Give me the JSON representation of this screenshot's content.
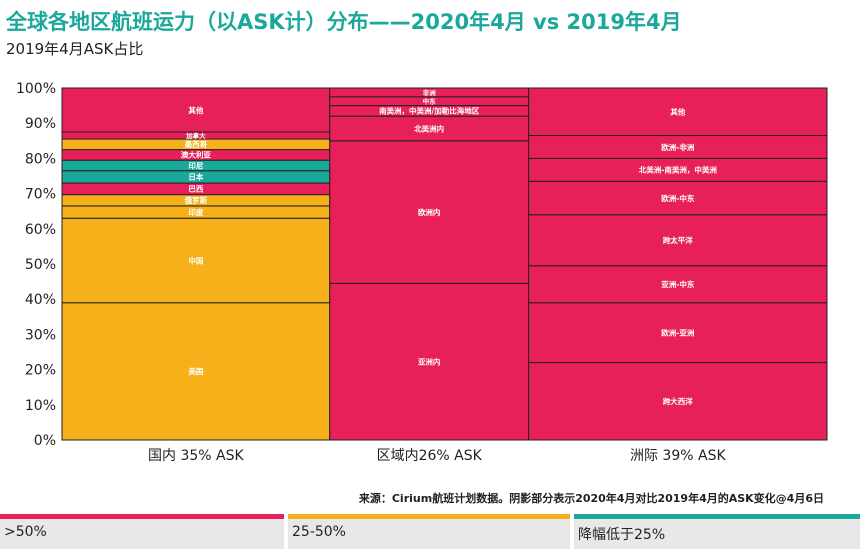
{
  "header": {
    "title": "全球各地区航班运力（以ASK计）分布——2020年4月 vs 2019年4月",
    "subtitle": "2019年4月ASK占比"
  },
  "source": "来源：Cirium航班计划数据。阴影部分表示2020年4月对比2019年4月的ASK变化@4月6日",
  "colors": {
    "gt50": "#e8205a",
    "range25_50": "#f5b01a",
    "lt25": "#1aa89a",
    "border": "#231f20"
  },
  "legend": [
    {
      "label": ">50%",
      "color": "#e8205a"
    },
    {
      "label": "25-50%",
      "color": "#f5b01a"
    },
    {
      "label": "降幅低于25%",
      "color": "#1aa89a"
    }
  ],
  "chart_data": {
    "type": "marimekko",
    "ylim": [
      0,
      100
    ],
    "yticks": [
      "0%",
      "10%",
      "20%",
      "30%",
      "40%",
      "50%",
      "60%",
      "70%",
      "80%",
      "90%",
      "100%"
    ],
    "columns": [
      {
        "label": "国内 35% ASK",
        "width": 35,
        "segments": [
          {
            "name": "美国",
            "value": 39,
            "cat": "range25_50"
          },
          {
            "name": "中国",
            "value": 24,
            "cat": "range25_50"
          },
          {
            "name": "印度",
            "value": 3.5,
            "cat": "range25_50"
          },
          {
            "name": "俄罗斯",
            "value": 3.2,
            "cat": "range25_50"
          },
          {
            "name": "巴西",
            "value": 3.3,
            "cat": "gt50"
          },
          {
            "name": "日本",
            "value": 3.5,
            "cat": "lt25"
          },
          {
            "name": "印尼",
            "value": 3.0,
            "cat": "lt25"
          },
          {
            "name": "澳大利亚",
            "value": 3.0,
            "cat": "gt50"
          },
          {
            "name": "墨西哥",
            "value": 3.0,
            "cat": "range25_50"
          },
          {
            "name": "加拿大",
            "value": 2.0,
            "cat": "gt50"
          },
          {
            "name": "其他",
            "value": 12.5,
            "cat": "gt50"
          }
        ]
      },
      {
        "label": "区域内26% ASK",
        "width": 26,
        "segments": [
          {
            "name": "亚洲内",
            "value": 44.5,
            "cat": "gt50"
          },
          {
            "name": "欧洲内",
            "value": 40.5,
            "cat": "gt50"
          },
          {
            "name": "北美洲内",
            "value": 7,
            "cat": "gt50"
          },
          {
            "name": "南美洲，中美洲/加勒比海地区",
            "value": 3,
            "cat": "gt50"
          },
          {
            "name": "中东",
            "value": 2.5,
            "cat": "gt50"
          },
          {
            "name": "非洲",
            "value": 2.5,
            "cat": "gt50"
          }
        ]
      },
      {
        "label": "洲际 39% ASK",
        "width": 39,
        "segments": [
          {
            "name": "跨大西洋",
            "value": 22,
            "cat": "gt50"
          },
          {
            "name": "欧洲-亚洲",
            "value": 17,
            "cat": "gt50"
          },
          {
            "name": "亚洲-中东",
            "value": 10.5,
            "cat": "gt50"
          },
          {
            "name": "跨太平洋",
            "value": 14.5,
            "cat": "gt50"
          },
          {
            "name": "欧洲-中东",
            "value": 9.5,
            "cat": "gt50"
          },
          {
            "name": "北美洲-南美洲，中美洲",
            "value": 6.5,
            "cat": "gt50"
          },
          {
            "name": "欧洲-非洲",
            "value": 6.5,
            "cat": "gt50"
          },
          {
            "name": "其他",
            "value": 13.5,
            "cat": "gt50"
          }
        ]
      }
    ]
  }
}
